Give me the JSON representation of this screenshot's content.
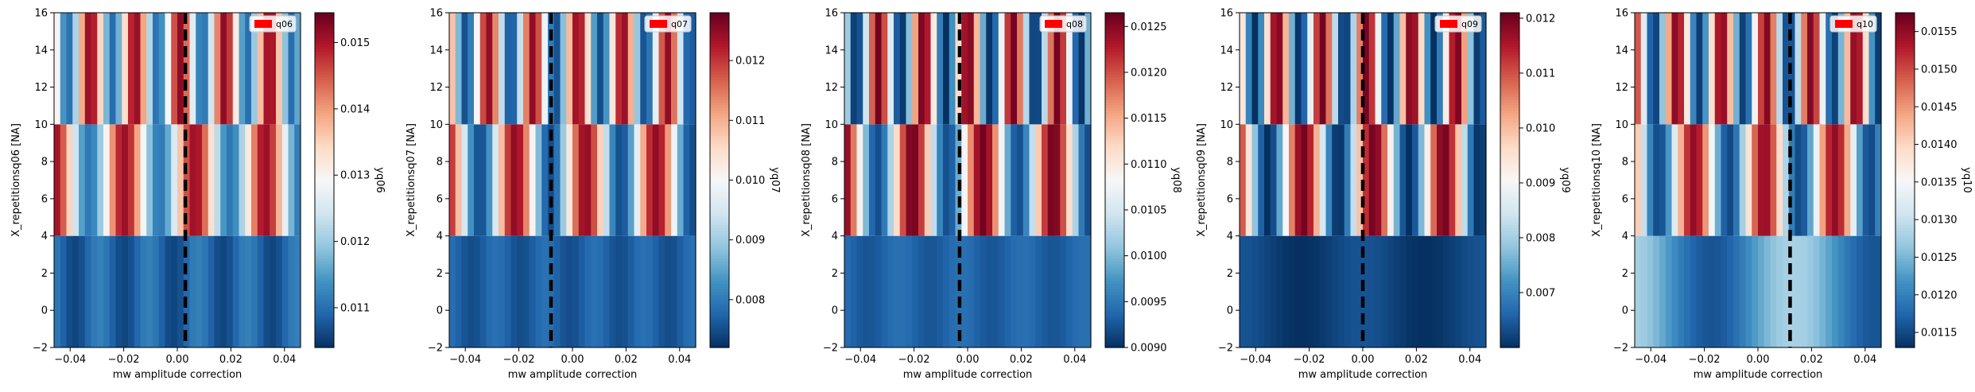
{
  "figure": {
    "background": "#ffffff"
  },
  "colormap": {
    "name": "RdBu_r",
    "stops": [
      "#053061",
      "#2166ac",
      "#4393c3",
      "#92c5de",
      "#d1e5f0",
      "#f7f7f7",
      "#fddbc7",
      "#f4a582",
      "#d6604d",
      "#b2182b",
      "#67001f"
    ]
  },
  "chart_data": [
    {
      "type": "heatmap",
      "qubit": "q06",
      "xlabel": "mw amplitude correction",
      "ylabel": "X_repetitionsq06 [NA]",
      "colorbar_label": "yq06",
      "legend": {
        "label": "q06",
        "color": "#ff0000",
        "position": "upper right"
      },
      "xlim": [
        -0.046,
        0.046
      ],
      "ylim": [
        -2,
        16
      ],
      "xticks": [
        -0.04,
        -0.02,
        0.0,
        0.02,
        0.04
      ],
      "xtick_labels": [
        "−0.04",
        "−0.02",
        "0.00",
        "0.02",
        "0.04"
      ],
      "yticks": [
        -2,
        0,
        2,
        4,
        6,
        8,
        10,
        12,
        14,
        16
      ],
      "ytick_labels": [
        "−2",
        "0",
        "2",
        "4",
        "6",
        "8",
        "10",
        "12",
        "14",
        "16"
      ],
      "x_range": [
        -0.046,
        0.046
      ],
      "n_columns": 40,
      "rows": [
        {
          "repetitions": 1,
          "y_from": -2,
          "y_to": 4,
          "mean": 0.0109,
          "amplitude": 0.0003,
          "cycles": 5,
          "phase": 0.5
        },
        {
          "repetitions": 7,
          "y_from": 4,
          "y_to": 10,
          "mean": 0.0131,
          "amplitude": 0.002,
          "cycles": 3.5,
          "phase": 0.0
        },
        {
          "repetitions": 13,
          "y_from": 10,
          "y_to": 16,
          "mean": 0.0131,
          "amplitude": 0.0021,
          "cycles": 5.5,
          "phase": 1.2
        }
      ],
      "vline_x": 0.003,
      "clim": [
        0.0104,
        0.01545
      ],
      "cticks": [
        0.011,
        0.012,
        0.013,
        0.014,
        0.015
      ],
      "ctick_labels": [
        "0.011",
        "0.012",
        "0.013",
        "0.014",
        "0.015"
      ]
    },
    {
      "type": "heatmap",
      "qubit": "q07",
      "xlabel": "mw amplitude correction",
      "ylabel": "X_repetitionsq07 [NA]",
      "colorbar_label": "yq07",
      "legend": {
        "label": "q07",
        "color": "#ff0000",
        "position": "upper right"
      },
      "xlim": [
        -0.046,
        0.046
      ],
      "ylim": [
        -2,
        16
      ],
      "xticks": [
        -0.04,
        -0.02,
        0.0,
        0.02,
        0.04
      ],
      "xtick_labels": [
        "−0.04",
        "−0.02",
        "0.00",
        "0.02",
        "0.04"
      ],
      "yticks": [
        -2,
        0,
        2,
        4,
        6,
        8,
        10,
        12,
        14,
        16
      ],
      "ytick_labels": [
        "−2",
        "0",
        "2",
        "4",
        "6",
        "8",
        "10",
        "12",
        "14",
        "16"
      ],
      "x_range": [
        -0.046,
        0.046
      ],
      "n_columns": 40,
      "rows": [
        {
          "repetitions": 1,
          "y_from": -2,
          "y_to": 4,
          "mean": 0.0077,
          "amplitude": 0.0002,
          "cycles": 5,
          "phase": 0.3
        },
        {
          "repetitions": 7,
          "y_from": 4,
          "y_to": 10,
          "mean": 0.01,
          "amplitude": 0.0025,
          "cycles": 3.5,
          "phase": 0.4
        },
        {
          "repetitions": 13,
          "y_from": 10,
          "y_to": 16,
          "mean": 0.01,
          "amplitude": 0.0025,
          "cycles": 5.5,
          "phase": 0.8
        }
      ],
      "vline_x": -0.008,
      "clim": [
        0.0072,
        0.0128
      ],
      "cticks": [
        0.008,
        0.009,
        0.01,
        0.011,
        0.012
      ],
      "ctick_labels": [
        "0.008",
        "0.009",
        "0.010",
        "0.011",
        "0.012"
      ]
    },
    {
      "type": "heatmap",
      "qubit": "q08",
      "xlabel": "mw amplitude correction",
      "ylabel": "X_repetitionsq08 [NA]",
      "colorbar_label": "yq08",
      "legend": {
        "label": "q08",
        "color": "#ff0000",
        "position": "upper right"
      },
      "xlim": [
        -0.046,
        0.046
      ],
      "ylim": [
        -2,
        16
      ],
      "xticks": [
        -0.04,
        -0.02,
        0.0,
        0.02,
        0.04
      ],
      "xtick_labels": [
        "−0.04",
        "−0.02",
        "0.00",
        "0.02",
        "0.04"
      ],
      "yticks": [
        -2,
        0,
        2,
        4,
        6,
        8,
        10,
        12,
        14,
        16
      ],
      "ytick_labels": [
        "−2",
        "0",
        "2",
        "4",
        "6",
        "8",
        "10",
        "12",
        "14",
        "16"
      ],
      "x_range": [
        -0.046,
        0.046
      ],
      "n_columns": 40,
      "rows": [
        {
          "repetitions": 1,
          "y_from": -2,
          "y_to": 4,
          "mean": 0.00935,
          "amplitude": 0.0001,
          "cycles": 4,
          "phase": 0.7
        },
        {
          "repetitions": 7,
          "y_from": 4,
          "y_to": 10,
          "mean": 0.0109,
          "amplitude": 0.0017,
          "cycles": 3.5,
          "phase": 0.2
        },
        {
          "repetitions": 13,
          "y_from": 10,
          "y_to": 16,
          "mean": 0.0108,
          "amplitude": 0.0018,
          "cycles": 5.5,
          "phase": 1.5
        }
      ],
      "vline_x": -0.003,
      "clim": [
        0.009,
        0.01265
      ],
      "cticks": [
        0.009,
        0.0095,
        0.01,
        0.0105,
        0.011,
        0.0115,
        0.012,
        0.0125
      ],
      "ctick_labels": [
        "0.0090",
        "0.0095",
        "0.0100",
        "0.0105",
        "0.0110",
        "0.0115",
        "0.0120",
        "0.0125"
      ]
    },
    {
      "type": "heatmap",
      "qubit": "q09",
      "xlabel": "mw amplitude correction",
      "ylabel": "X_repetitionsq09 [NA]",
      "colorbar_label": "yq09",
      "legend": {
        "label": "q09",
        "color": "#ff0000",
        "position": "upper right"
      },
      "xlim": [
        -0.046,
        0.046
      ],
      "ylim": [
        -2,
        16
      ],
      "xticks": [
        -0.04,
        -0.02,
        0.0,
        0.02,
        0.04
      ],
      "xtick_labels": [
        "−0.04",
        "−0.02",
        "0.00",
        "0.02",
        "0.04"
      ],
      "yticks": [
        -2,
        0,
        2,
        4,
        6,
        8,
        10,
        12,
        14,
        16
      ],
      "ytick_labels": [
        "−2",
        "0",
        "2",
        "4",
        "6",
        "8",
        "10",
        "12",
        "14",
        "16"
      ],
      "x_range": [
        -0.046,
        0.046
      ],
      "n_columns": 40,
      "rows": [
        {
          "repetitions": 1,
          "y_from": -2,
          "y_to": 4,
          "mean": 0.0062,
          "amplitude": 0.0002,
          "cycles": 2,
          "phase": 0.0
        },
        {
          "repetitions": 7,
          "y_from": 4,
          "y_to": 10,
          "mean": 0.009,
          "amplitude": 0.003,
          "cycles": 3.5,
          "phase": 0.6
        },
        {
          "repetitions": 13,
          "y_from": 10,
          "y_to": 16,
          "mean": 0.009,
          "amplitude": 0.003,
          "cycles": 5.5,
          "phase": 1.0
        }
      ],
      "vline_x": 0.0,
      "clim": [
        0.006,
        0.0121
      ],
      "cticks": [
        0.007,
        0.008,
        0.009,
        0.01,
        0.011,
        0.012
      ],
      "ctick_labels": [
        "0.007",
        "0.008",
        "0.009",
        "0.010",
        "0.011",
        "0.012"
      ]
    },
    {
      "type": "heatmap",
      "qubit": "q10",
      "xlabel": "mw amplitude correction",
      "ylabel": "X_repetitionsq10 [NA]",
      "colorbar_label": "yq10",
      "legend": {
        "label": "q10",
        "color": "#ff0000",
        "position": "upper right"
      },
      "xlim": [
        -0.046,
        0.046
      ],
      "ylim": [
        -2,
        16
      ],
      "xticks": [
        -0.04,
        -0.02,
        0.0,
        0.02,
        0.04
      ],
      "xtick_labels": [
        "−0.04",
        "−0.02",
        "0.00",
        "0.02",
        "0.04"
      ],
      "yticks": [
        -2,
        0,
        2,
        4,
        6,
        8,
        10,
        12,
        14,
        16
      ],
      "ytick_labels": [
        "−2",
        "0",
        "2",
        "4",
        "6",
        "8",
        "10",
        "12",
        "14",
        "16"
      ],
      "x_range": [
        -0.046,
        0.046
      ],
      "n_columns": 40,
      "rows": [
        {
          "repetitions": 1,
          "y_from": -2,
          "y_to": 4,
          "mean": 0.0122,
          "amplitude": 0.0006,
          "cycles": 1.5,
          "phase": 0.2
        },
        {
          "repetitions": 7,
          "y_from": 4,
          "y_to": 10,
          "mean": 0.0135,
          "amplitude": 0.002,
          "cycles": 3.5,
          "phase": 1.0
        },
        {
          "repetitions": 13,
          "y_from": 10,
          "y_to": 16,
          "mean": 0.0135,
          "amplitude": 0.0021,
          "cycles": 5.5,
          "phase": 0.4
        }
      ],
      "vline_x": 0.012,
      "clim": [
        0.0113,
        0.01575
      ],
      "cticks": [
        0.0115,
        0.012,
        0.0125,
        0.013,
        0.0135,
        0.014,
        0.0145,
        0.015,
        0.0155
      ],
      "ctick_labels": [
        "0.0115",
        "0.0120",
        "0.0125",
        "0.0130",
        "0.0135",
        "0.0140",
        "0.0145",
        "0.0150",
        "0.0155"
      ]
    }
  ]
}
